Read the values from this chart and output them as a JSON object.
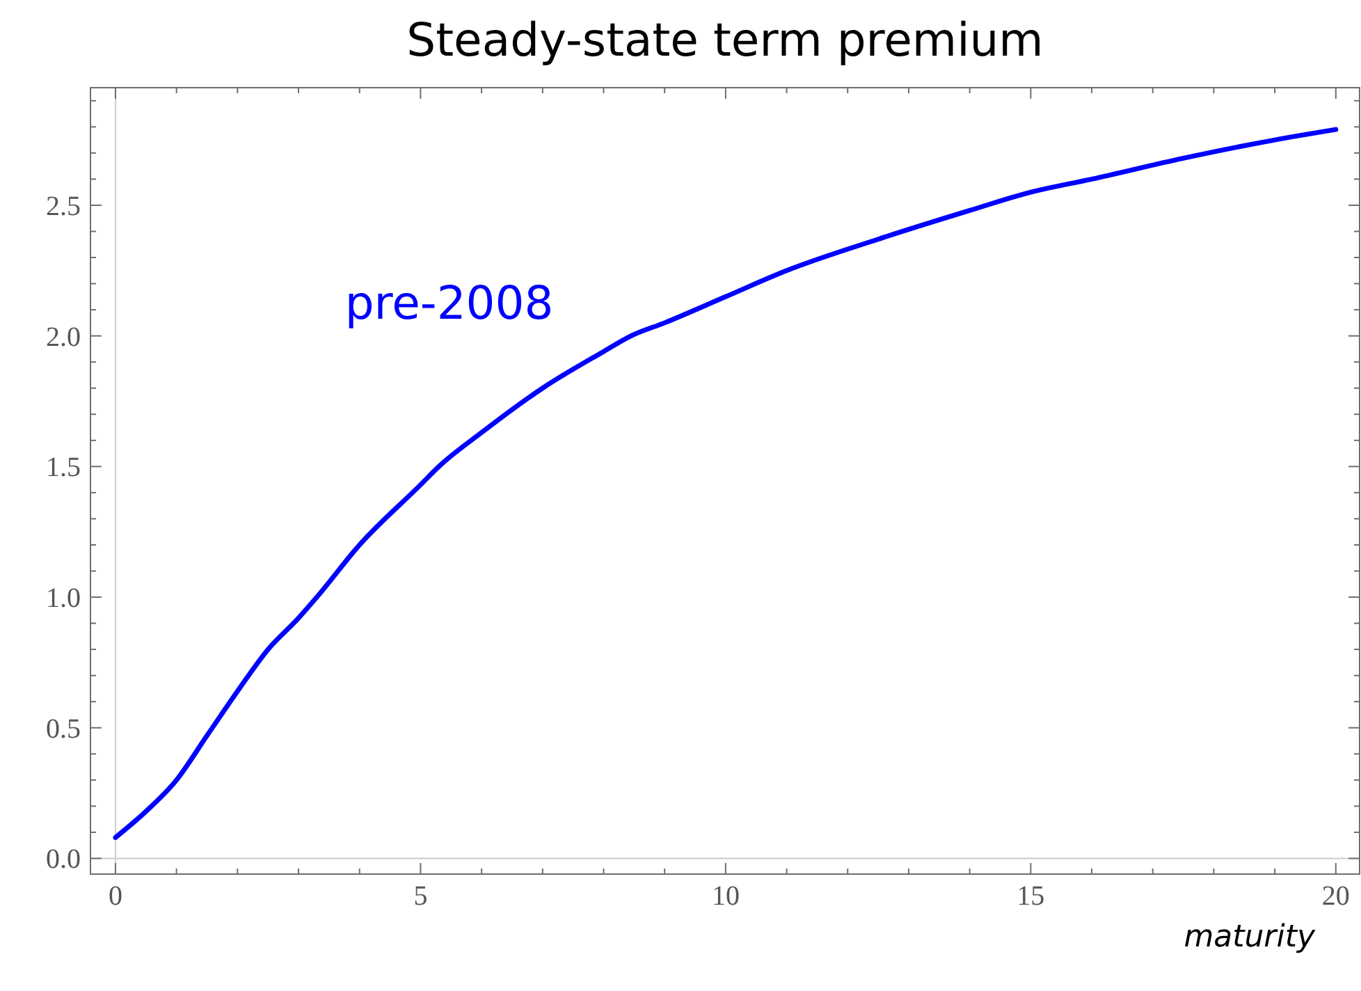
{
  "chart_data": {
    "type": "line",
    "title": "Steady-state term premium",
    "xlabel": "maturity",
    "x": [
      0,
      0.5,
      1,
      1.5,
      2,
      2.5,
      3,
      3.3,
      4,
      5,
      5.3,
      6,
      7,
      8,
      8.45,
      9,
      10,
      11,
      12.5,
      14,
      15,
      16,
      17.5,
      19,
      20
    ],
    "series": [
      {
        "name": "pre-2008",
        "color": "#0000ff",
        "values": [
          0.08,
          0.18,
          0.3,
          0.47,
          0.64,
          0.8,
          0.92,
          1.0,
          1.2,
          1.43,
          1.5,
          1.63,
          1.8,
          1.94,
          2.0,
          2.05,
          2.15,
          2.25,
          2.37,
          2.48,
          2.55,
          2.6,
          2.68,
          2.75,
          2.79
        ]
      }
    ],
    "xlim": [
      -0.41,
      20.39
    ],
    "ylim": [
      -0.06,
      2.95
    ],
    "xticks": [
      0,
      {
        "value": 1,
        "label": null
      },
      {
        "value": 2,
        "label": null
      },
      {
        "value": 3,
        "label": null
      },
      {
        "value": 4,
        "label": null
      },
      5,
      {
        "value": 6,
        "label": null
      },
      {
        "value": 7,
        "label": null
      },
      {
        "value": 8,
        "label": null
      },
      {
        "value": 9,
        "label": null
      },
      10,
      {
        "value": 11,
        "label": null
      },
      {
        "value": 12,
        "label": null
      },
      {
        "value": 13,
        "label": null
      },
      {
        "value": 14,
        "label": null
      },
      15,
      {
        "value": 16,
        "label": null
      },
      {
        "value": 17,
        "label": null
      },
      {
        "value": 18,
        "label": null
      },
      {
        "value": 19,
        "label": null
      },
      20
    ],
    "yticks": [
      {
        "value": 0,
        "label": "0.0"
      },
      {
        "value": 0.1,
        "label": null
      },
      {
        "value": 0.2,
        "label": null
      },
      {
        "value": 0.3,
        "label": null
      },
      {
        "value": 0.4,
        "label": null
      },
      {
        "value": 0.5,
        "label": "0.5"
      },
      {
        "value": 0.6,
        "label": null
      },
      {
        "value": 0.7,
        "label": null
      },
      {
        "value": 0.8,
        "label": null
      },
      {
        "value": 0.9,
        "label": null
      },
      {
        "value": 1,
        "label": "1.0"
      },
      {
        "value": 1.1,
        "label": null
      },
      {
        "value": 1.2,
        "label": null
      },
      {
        "value": 1.3,
        "label": null
      },
      {
        "value": 1.4,
        "label": null
      },
      {
        "value": 1.5,
        "label": "1.5"
      },
      {
        "value": 1.6,
        "label": null
      },
      {
        "value": 1.7,
        "label": null
      },
      {
        "value": 1.8,
        "label": null
      },
      {
        "value": 1.9,
        "label": null
      },
      {
        "value": 2,
        "label": "2.0"
      },
      {
        "value": 2.1,
        "label": null
      },
      {
        "value": 2.2,
        "label": null
      },
      {
        "value": 2.3,
        "label": null
      },
      {
        "value": 2.4,
        "label": null
      },
      {
        "value": 2.5,
        "label": "2.5"
      },
      {
        "value": 2.6,
        "label": null
      },
      {
        "value": 2.7,
        "label": null
      },
      {
        "value": 2.8,
        "label": null
      },
      {
        "value": 2.9,
        "label": null
      }
    ],
    "legend": false,
    "line_style": "solid"
  }
}
